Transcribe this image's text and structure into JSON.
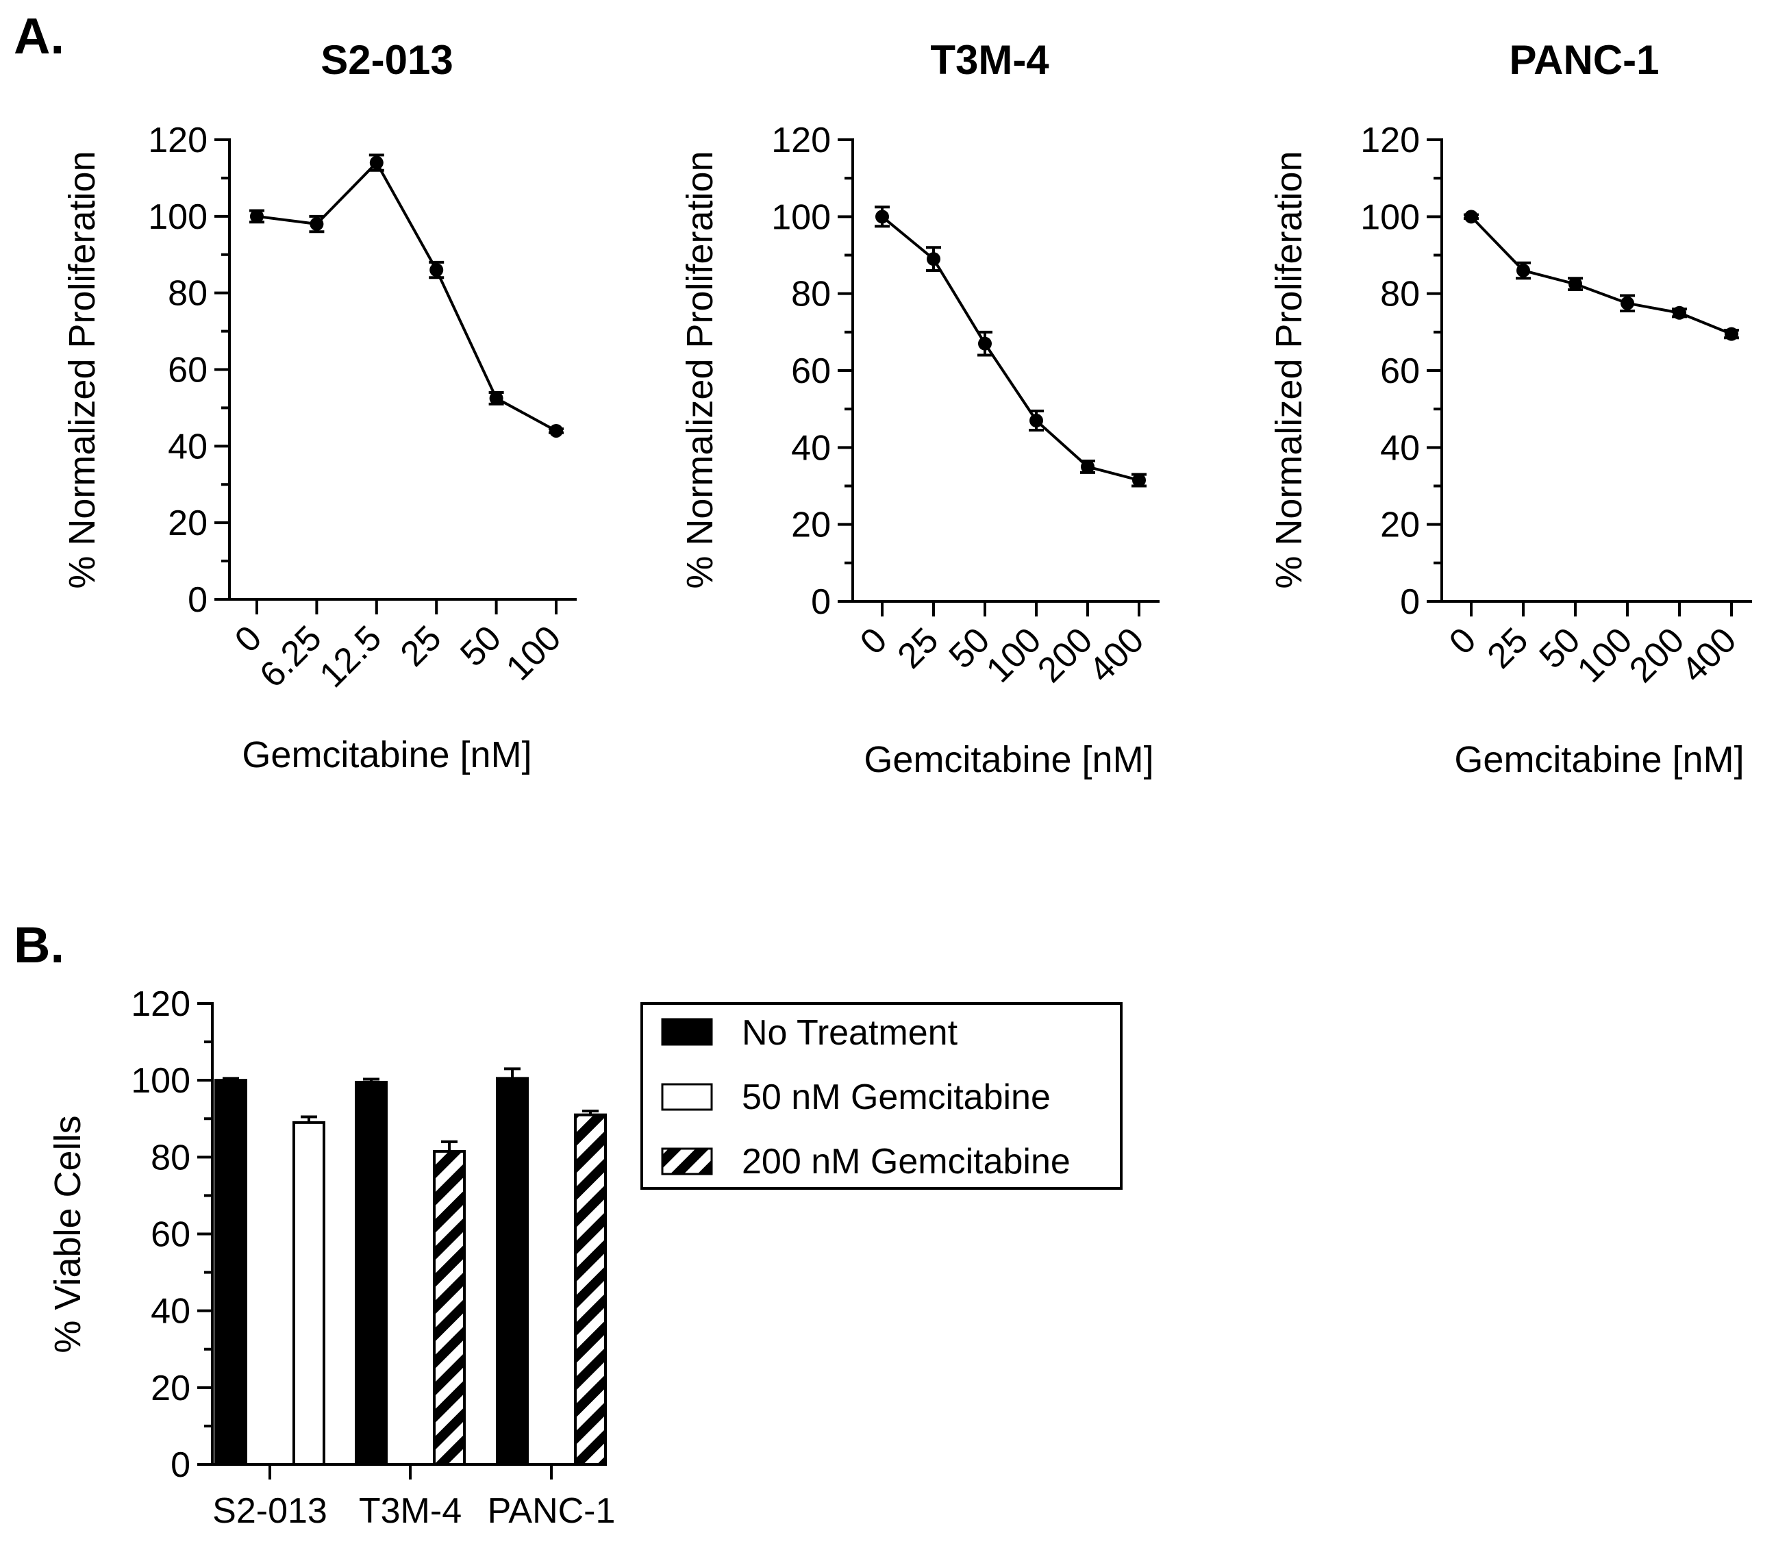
{
  "panel_a_label": "A.",
  "panel_b_label": "B.",
  "chart_data": [
    {
      "type": "line",
      "title": "S2-013",
      "xlabel": "Gemcitabine [nM]",
      "ylabel": "% Normalized Proliferation",
      "categories": [
        "0",
        "6.25",
        "12.5",
        "25",
        "50",
        "100"
      ],
      "values": [
        100,
        98,
        114,
        86,
        52.5,
        44
      ],
      "errors": [
        1.5,
        2,
        2,
        2,
        1.5,
        0.5
      ],
      "ylim": [
        0,
        120
      ],
      "yticks": [
        0,
        20,
        40,
        60,
        80,
        100,
        120
      ]
    },
    {
      "type": "line",
      "title": "T3M-4",
      "xlabel": "Gemcitabine [nM]",
      "ylabel": "% Normalized Proliferation",
      "categories": [
        "0",
        "25",
        "50",
        "100",
        "200",
        "400"
      ],
      "values": [
        100,
        89,
        67,
        47,
        35,
        31.5
      ],
      "errors": [
        2.5,
        3,
        3,
        2.5,
        1.5,
        1.5
      ],
      "ylim": [
        0,
        120
      ],
      "yticks": [
        0,
        20,
        40,
        60,
        80,
        100,
        120
      ]
    },
    {
      "type": "line",
      "title": "PANC-1",
      "xlabel": "Gemcitabine [nM]",
      "ylabel": "% Normalized Proliferation",
      "categories": [
        "0",
        "25",
        "50",
        "100",
        "200",
        "400"
      ],
      "values": [
        100,
        86,
        82.5,
        77.5,
        75,
        69.5
      ],
      "errors": [
        0.5,
        2,
        1.5,
        2,
        1,
        1
      ],
      "ylim": [
        0,
        120
      ],
      "yticks": [
        0,
        20,
        40,
        60,
        80,
        100,
        120
      ]
    },
    {
      "type": "bar",
      "categories": [
        "S2-013",
        "T3M-4",
        "PANC-1"
      ],
      "ylabel": "% Viable Cells",
      "xlabel": "",
      "ylim": [
        0,
        120
      ],
      "yticks": [
        0,
        20,
        40,
        60,
        80,
        100,
        120
      ],
      "series": [
        {
          "name": "No Treatment",
          "pattern": "solid-black",
          "values": [
            100,
            99.5,
            100.5
          ],
          "errors": [
            0.5,
            0.8,
            2.5
          ]
        },
        {
          "name": "50 nM Gemcitabine",
          "pattern": "white",
          "values": [
            89,
            null,
            null
          ],
          "errors": [
            1.5,
            null,
            null
          ]
        },
        {
          "name": "200 nM Gemcitabine",
          "pattern": "diagonal-stripes",
          "values": [
            null,
            81.5,
            91
          ],
          "errors": [
            null,
            2.5,
            1
          ]
        }
      ],
      "legend_position": "top-right"
    }
  ]
}
